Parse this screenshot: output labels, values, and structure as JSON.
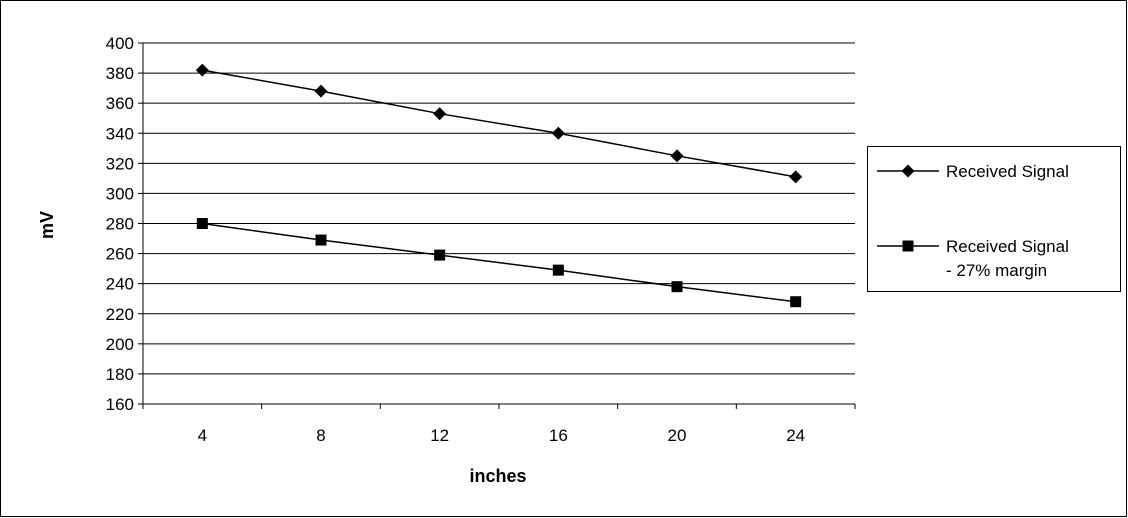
{
  "chart_data": {
    "type": "line",
    "xlabel": "inches",
    "ylabel": "mV",
    "categories": [
      "4",
      "8",
      "12",
      "16",
      "20",
      "24"
    ],
    "ylim": [
      160,
      400
    ],
    "yticks": [
      160,
      180,
      200,
      220,
      240,
      260,
      280,
      300,
      320,
      340,
      360,
      380,
      400
    ],
    "grid": true,
    "legend": "right",
    "series": [
      {
        "name": "Received Signal",
        "marker": "diamond",
        "color": "#000000",
        "values": [
          382,
          368,
          353,
          340,
          325,
          311
        ]
      },
      {
        "name": "Received Signal - 27% margin",
        "name_lines": [
          "Received Signal",
          "- 27% margin"
        ],
        "marker": "square",
        "color": "#000000",
        "values": [
          280,
          269,
          259,
          249,
          238,
          228
        ]
      }
    ]
  }
}
